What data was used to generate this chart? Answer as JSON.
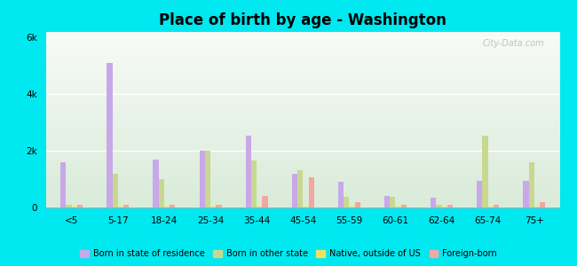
{
  "title": "Place of birth by age - Washington",
  "categories": [
    "<5",
    "5-17",
    "18-24",
    "25-34",
    "35-44",
    "45-54",
    "55-59",
    "60-61",
    "62-64",
    "65-74",
    "75+"
  ],
  "series": {
    "born_in_state": [
      1600,
      5100,
      1700,
      2000,
      2550,
      1200,
      900,
      400,
      350,
      950,
      950
    ],
    "born_other_state": [
      100,
      1200,
      1000,
      2000,
      1650,
      1300,
      380,
      380,
      100,
      2550,
      1600
    ],
    "native_outside_us": [
      30,
      30,
      30,
      30,
      30,
      30,
      30,
      30,
      30,
      30,
      30
    ],
    "foreign_born": [
      80,
      80,
      80,
      80,
      400,
      1050,
      180,
      80,
      80,
      80,
      180
    ]
  },
  "colors": {
    "born_in_state": "#c8a8e8",
    "born_other_state": "#c8d890",
    "native_outside_us": "#f0e060",
    "foreign_born": "#f0a8a0"
  },
  "ylim": [
    0,
    6200
  ],
  "yticks": [
    0,
    2000,
    4000,
    6000
  ],
  "ytick_labels": [
    "0",
    "2k",
    "4k",
    "6k"
  ],
  "legend_labels": [
    "Born in state of residence",
    "Born in other state",
    "Native, outside of US",
    "Foreign-born"
  ],
  "bar_width": 0.12,
  "figure_bg": "#00e8f0",
  "plot_bg": "#ddeedd"
}
